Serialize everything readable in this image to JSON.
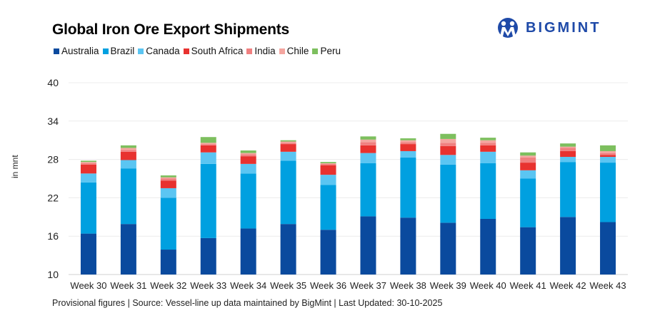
{
  "header": {
    "title": "Global Iron Ore Export Shipments",
    "brand": "BIGMINT",
    "brand_color": "#1f4aa8"
  },
  "footer": {
    "note": "Provisional figures | Source: Vessel-line up data maintained by BigMint | Last Updated: 30-10-2025"
  },
  "chart_data": {
    "type": "bar",
    "stacked": true,
    "title": "Global Iron Ore Export Shipments",
    "xlabel": "",
    "ylabel": "in mnt",
    "ylim": [
      10,
      40
    ],
    "yticks": [
      10,
      16,
      22,
      28,
      34,
      40
    ],
    "grid": true,
    "legend_position": "top-left",
    "categories": [
      "Week 30",
      "Week 31",
      "Week 32",
      "Week 33",
      "Week 34",
      "Week 35",
      "Week 36",
      "Week 37",
      "Week 38",
      "Week 39",
      "Week 40",
      "Week 41",
      "Week 42",
      "Week 43"
    ],
    "series": [
      {
        "name": "Australia",
        "color": "#0a4a9e",
        "values": [
          16.4,
          17.9,
          13.9,
          15.7,
          17.2,
          17.9,
          17.0,
          19.1,
          18.9,
          18.1,
          18.7,
          17.4,
          19.0,
          18.2
        ]
      },
      {
        "name": "Brazil",
        "color": "#00a0e0",
        "values": [
          8.0,
          8.7,
          8.1,
          11.6,
          8.6,
          9.9,
          7.0,
          8.3,
          9.4,
          9.1,
          8.7,
          7.6,
          8.6,
          9.3
        ]
      },
      {
        "name": "Canada",
        "color": "#5bc5f2",
        "values": [
          1.4,
          1.3,
          1.5,
          1.8,
          1.5,
          1.4,
          1.6,
          1.6,
          1.0,
          1.5,
          1.8,
          1.3,
          0.8,
          0.9
        ]
      },
      {
        "name": "South Africa",
        "color": "#e8322f",
        "values": [
          1.4,
          1.3,
          1.2,
          1.1,
          1.2,
          1.2,
          1.5,
          1.2,
          1.1,
          1.4,
          1.0,
          1.2,
          0.9,
          0.3
        ]
      },
      {
        "name": "India",
        "color": "#f08080",
        "values": [
          0.2,
          0.3,
          0.3,
          0.2,
          0.3,
          0.2,
          0.2,
          0.5,
          0.3,
          0.5,
          0.4,
          0.8,
          0.5,
          0.3
        ]
      },
      {
        "name": "Chile",
        "color": "#f4a6a0",
        "values": [
          0.2,
          0.3,
          0.2,
          0.2,
          0.2,
          0.2,
          0.1,
          0.4,
          0.3,
          0.6,
          0.4,
          0.3,
          0.2,
          0.3
        ]
      },
      {
        "name": "Peru",
        "color": "#7dbf5e",
        "values": [
          0.2,
          0.4,
          0.3,
          0.9,
          0.4,
          0.2,
          0.2,
          0.5,
          0.3,
          0.8,
          0.4,
          0.5,
          0.5,
          0.9
        ]
      }
    ]
  }
}
